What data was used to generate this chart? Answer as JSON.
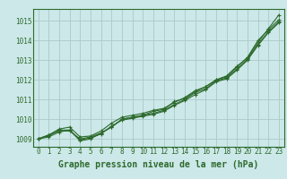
{
  "title": "Graphe pression niveau de la mer (hPa)",
  "background_color": "#cce8e8",
  "grid_color": "#aacaca",
  "line_color": "#2d6a2d",
  "xlim": [
    -0.5,
    23.5
  ],
  "ylim": [
    1008.6,
    1015.6
  ],
  "yticks": [
    1009,
    1010,
    1011,
    1012,
    1013,
    1014,
    1015
  ],
  "xticks": [
    0,
    1,
    2,
    3,
    4,
    5,
    6,
    7,
    8,
    9,
    10,
    11,
    12,
    13,
    14,
    15,
    16,
    17,
    18,
    19,
    20,
    21,
    22,
    23
  ],
  "series": [
    [
      1009.0,
      1009.2,
      1009.4,
      1009.4,
      1009.0,
      1009.1,
      1009.3,
      1009.6,
      1010.0,
      1010.1,
      1010.2,
      1010.4,
      1010.5,
      1010.9,
      1011.05,
      1011.4,
      1011.65,
      1012.0,
      1012.2,
      1012.7,
      1013.1,
      1013.9,
      1014.6,
      1015.3
    ],
    [
      1009.0,
      1009.2,
      1009.5,
      1009.6,
      1009.1,
      1009.15,
      1009.4,
      1009.8,
      1010.1,
      1010.2,
      1010.3,
      1010.45,
      1010.55,
      1010.85,
      1011.1,
      1011.45,
      1011.65,
      1012.0,
      1012.15,
      1012.65,
      1013.15,
      1014.0,
      1014.55,
      1015.05
    ],
    [
      1009.0,
      1009.15,
      1009.45,
      1009.45,
      1008.9,
      1009.0,
      1009.3,
      1009.6,
      1010.0,
      1010.1,
      1010.2,
      1010.3,
      1010.45,
      1010.75,
      1011.0,
      1011.35,
      1011.55,
      1011.95,
      1012.1,
      1012.55,
      1013.05,
      1013.8,
      1014.45,
      1014.95
    ],
    [
      1009.0,
      1009.1,
      1009.35,
      1009.45,
      1008.95,
      1009.05,
      1009.25,
      1009.65,
      1009.95,
      1010.05,
      1010.15,
      1010.25,
      1010.4,
      1010.7,
      1010.95,
      1011.25,
      1011.5,
      1011.9,
      1012.05,
      1012.5,
      1013.0,
      1013.75,
      1014.4,
      1014.9
    ]
  ],
  "title_fontsize": 7.0,
  "tick_fontsize": 5.5
}
